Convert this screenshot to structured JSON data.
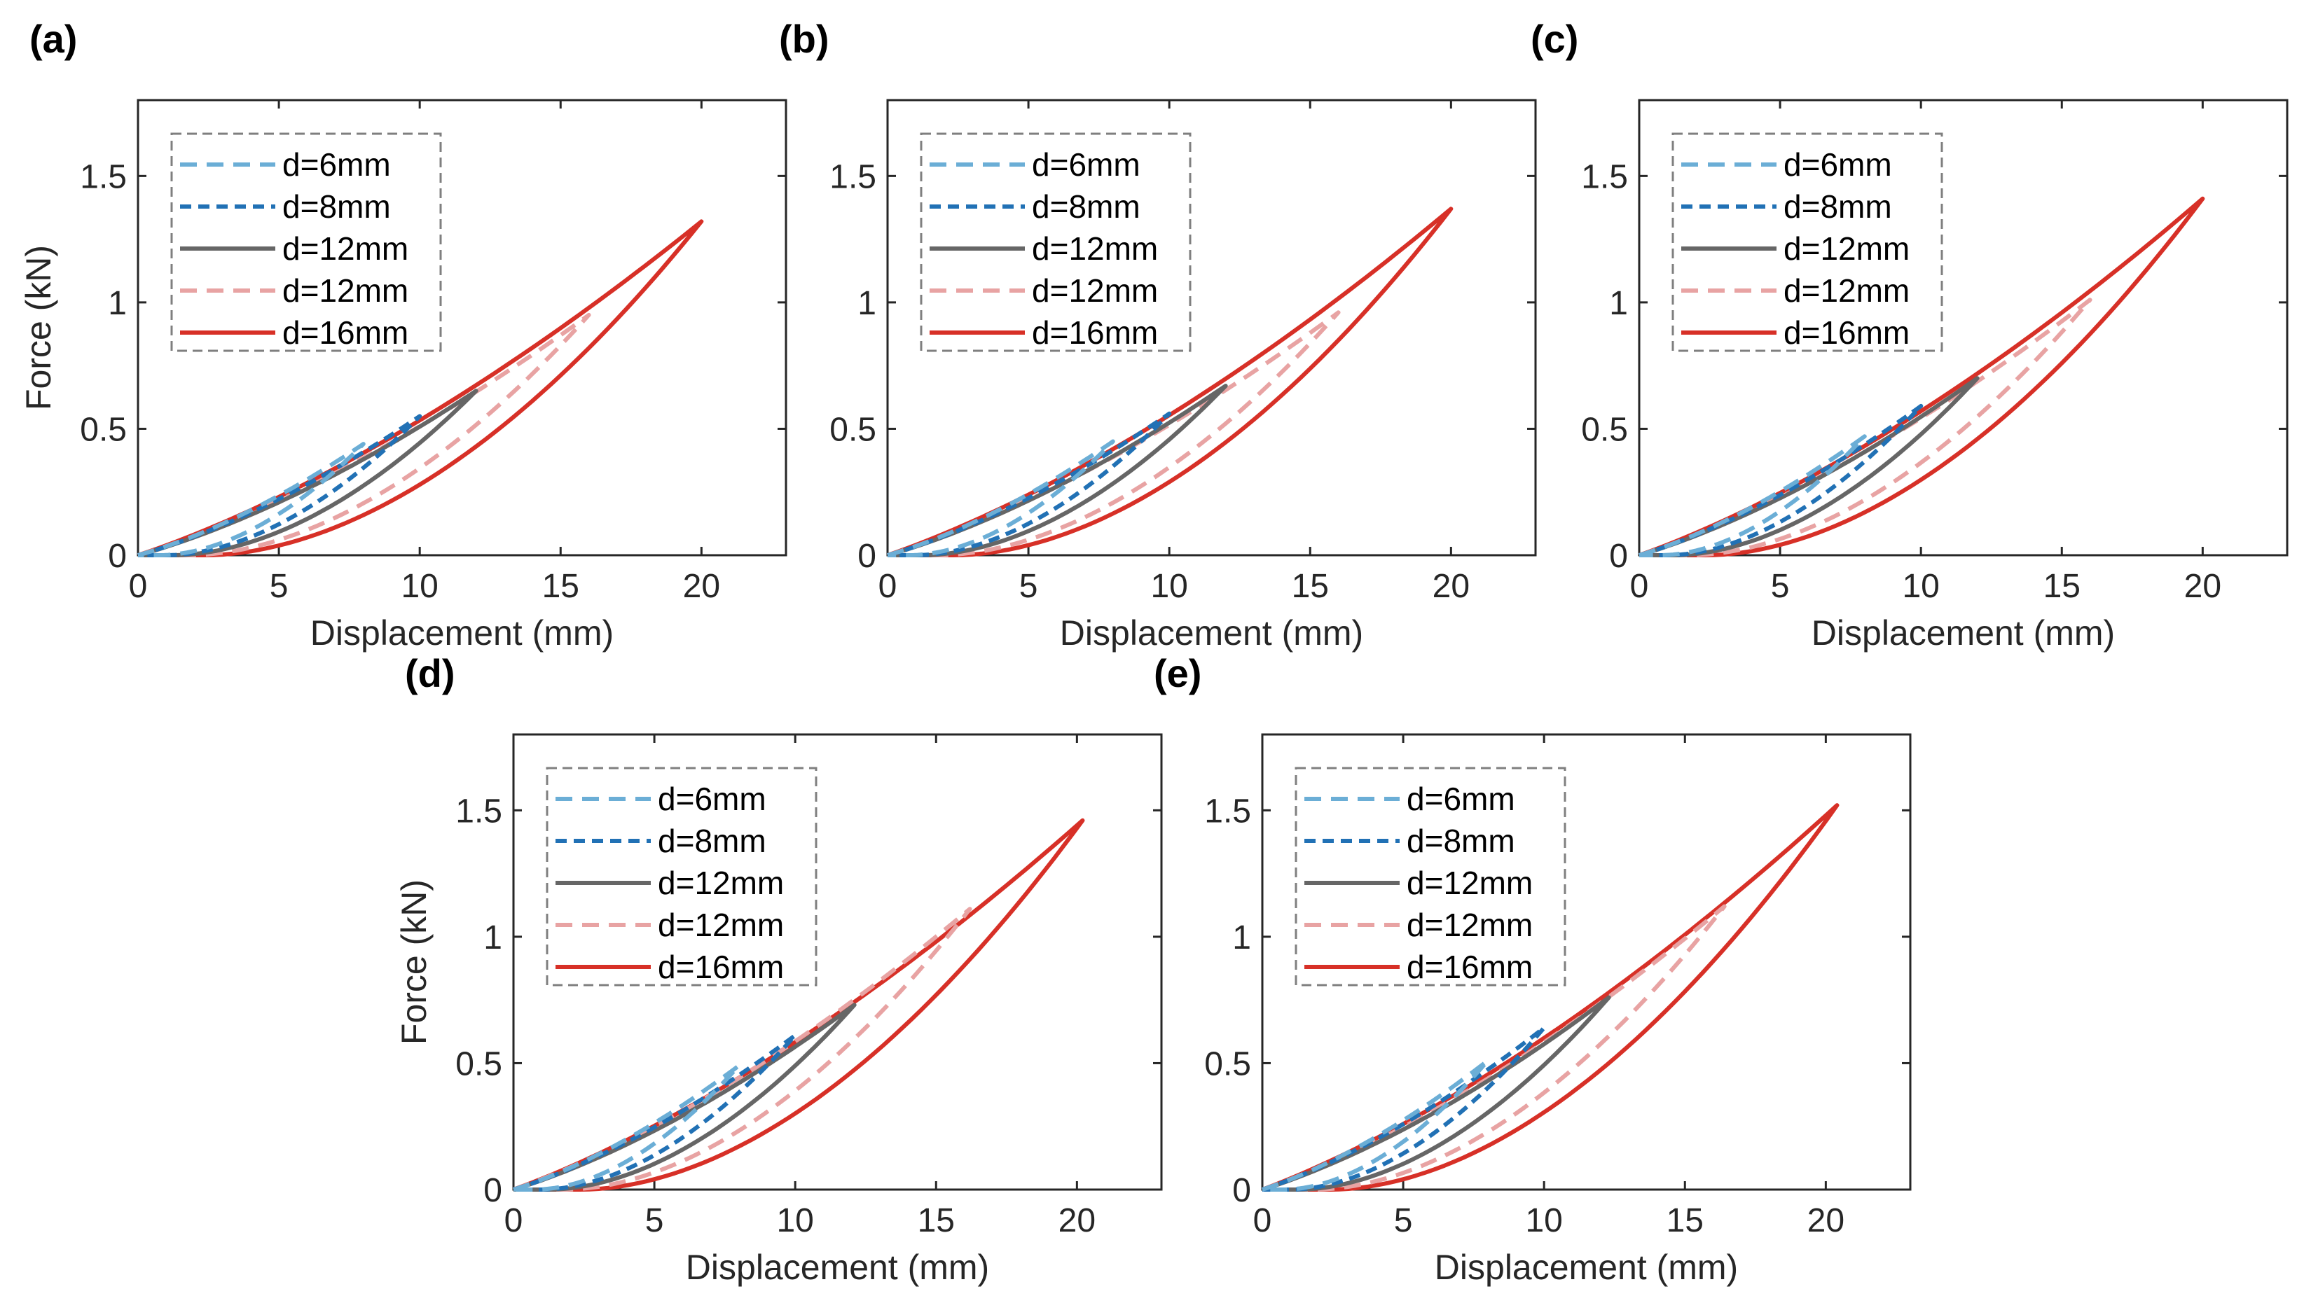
{
  "figure": {
    "legend_entries": [
      "d=6mm",
      "d=8mm",
      "d=12mm",
      "d=12mm",
      "d=16mm"
    ]
  },
  "colors": {
    "d6": "#6baed6",
    "d8": "#2171b5",
    "d12_solid": "#666666",
    "d12_dashed": "#e8a3a3",
    "d16": "#d73027"
  },
  "chart_data": [
    {
      "type": "line",
      "panel": "(a)",
      "xlabel": "Displacement (mm)",
      "ylabel": "Force (kN)",
      "xlim": [
        0,
        23
      ],
      "ylim": [
        0,
        1.8
      ],
      "xticks": [
        0,
        5,
        10,
        15,
        20
      ],
      "yticks": [
        0,
        0.5,
        1,
        1.5
      ],
      "series": [
        {
          "name": "d=6mm",
          "style": "dashed",
          "color": "#6baed6",
          "max_disp": 8,
          "peak_force": 0.44
        },
        {
          "name": "d=8mm",
          "style": "dashed",
          "color": "#2171b5",
          "max_disp": 10,
          "peak_force": 0.55
        },
        {
          "name": "d=12mm",
          "style": "solid",
          "color": "#666666",
          "max_disp": 12,
          "peak_force": 0.65
        },
        {
          "name": "d=12mm",
          "style": "dashed",
          "color": "#e8a3a3",
          "max_disp": 16,
          "peak_force": 0.95
        },
        {
          "name": "d=16mm",
          "style": "solid",
          "color": "#d73027",
          "max_disp": 20,
          "peak_force": 1.32
        }
      ]
    },
    {
      "type": "line",
      "panel": "(b)",
      "xlabel": "Displacement (mm)",
      "ylabel": "",
      "xlim": [
        0,
        23
      ],
      "ylim": [
        0,
        1.8
      ],
      "xticks": [
        0,
        5,
        10,
        15,
        20
      ],
      "yticks": [
        0,
        0.5,
        1,
        1.5
      ],
      "series": [
        {
          "name": "d=6mm",
          "style": "dashed",
          "color": "#6baed6",
          "max_disp": 8,
          "peak_force": 0.45
        },
        {
          "name": "d=8mm",
          "style": "dashed",
          "color": "#2171b5",
          "max_disp": 10,
          "peak_force": 0.56
        },
        {
          "name": "d=12mm",
          "style": "solid",
          "color": "#666666",
          "max_disp": 12,
          "peak_force": 0.67
        },
        {
          "name": "d=12mm",
          "style": "dashed",
          "color": "#e8a3a3",
          "max_disp": 16,
          "peak_force": 0.96
        },
        {
          "name": "d=16mm",
          "style": "solid",
          "color": "#d73027",
          "max_disp": 20,
          "peak_force": 1.37
        }
      ]
    },
    {
      "type": "line",
      "panel": "(c)",
      "xlabel": "Displacement (mm)",
      "ylabel": "",
      "xlim": [
        0,
        23
      ],
      "ylim": [
        0,
        1.8
      ],
      "xticks": [
        0,
        5,
        10,
        15,
        20
      ],
      "yticks": [
        0,
        0.5,
        1,
        1.5
      ],
      "series": [
        {
          "name": "d=6mm",
          "style": "dashed",
          "color": "#6baed6",
          "max_disp": 8,
          "peak_force": 0.47
        },
        {
          "name": "d=8mm",
          "style": "dashed",
          "color": "#2171b5",
          "max_disp": 10,
          "peak_force": 0.59
        },
        {
          "name": "d=12mm",
          "style": "solid",
          "color": "#666666",
          "max_disp": 12,
          "peak_force": 0.7
        },
        {
          "name": "d=12mm",
          "style": "dashed",
          "color": "#e8a3a3",
          "max_disp": 16,
          "peak_force": 1.01
        },
        {
          "name": "d=16mm",
          "style": "solid",
          "color": "#d73027",
          "max_disp": 20,
          "peak_force": 1.41
        }
      ]
    },
    {
      "type": "line",
      "panel": "(d)",
      "xlabel": "Displacement (mm)",
      "ylabel": "Force (kN)",
      "xlim": [
        0,
        23
      ],
      "ylim": [
        0,
        1.8
      ],
      "xticks": [
        0,
        5,
        10,
        15,
        20
      ],
      "yticks": [
        0,
        0.5,
        1,
        1.5
      ],
      "series": [
        {
          "name": "d=6mm",
          "style": "dashed",
          "color": "#6baed6",
          "max_disp": 8,
          "peak_force": 0.49
        },
        {
          "name": "d=8mm",
          "style": "dashed",
          "color": "#2171b5",
          "max_disp": 10,
          "peak_force": 0.61
        },
        {
          "name": "d=12mm",
          "style": "solid",
          "color": "#666666",
          "max_disp": 12.1,
          "peak_force": 0.73
        },
        {
          "name": "d=12mm",
          "style": "dashed",
          "color": "#e8a3a3",
          "max_disp": 16.2,
          "peak_force": 1.11
        },
        {
          "name": "d=16mm",
          "style": "solid",
          "color": "#d73027",
          "max_disp": 20.2,
          "peak_force": 1.46
        }
      ]
    },
    {
      "type": "line",
      "panel": "(e)",
      "xlabel": "Displacement (mm)",
      "ylabel": "",
      "xlim": [
        0,
        23
      ],
      "ylim": [
        0,
        1.8
      ],
      "xticks": [
        0,
        5,
        10,
        15,
        20
      ],
      "yticks": [
        0,
        0.5,
        1,
        1.5
      ],
      "series": [
        {
          "name": "d=6mm",
          "style": "dashed",
          "color": "#6baed6",
          "max_disp": 8,
          "peak_force": 0.51
        },
        {
          "name": "d=8mm",
          "style": "dashed",
          "color": "#2171b5",
          "max_disp": 10,
          "peak_force": 0.64
        },
        {
          "name": "d=12mm",
          "style": "solid",
          "color": "#666666",
          "max_disp": 12.3,
          "peak_force": 0.76
        },
        {
          "name": "d=12mm",
          "style": "dashed",
          "color": "#e8a3a3",
          "max_disp": 16.4,
          "peak_force": 1.12
        },
        {
          "name": "d=16mm",
          "style": "solid",
          "color": "#d73027",
          "max_disp": 20.4,
          "peak_force": 1.52
        }
      ]
    }
  ]
}
